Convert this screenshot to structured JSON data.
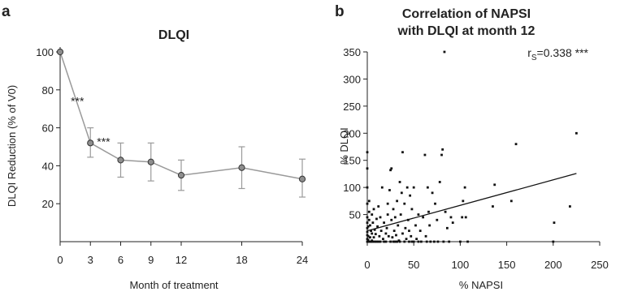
{
  "chart_data": [
    {
      "type": "line",
      "panel_label": "a",
      "title": "DLQI",
      "xlabel": "Month of treatment",
      "ylabel": "DLQI Reduction (% of V0)",
      "x_ticks": [
        "0",
        "3",
        "6",
        "9",
        "12",
        "18",
        "24"
      ],
      "y_ticks": [
        "20",
        "40",
        "60",
        "80",
        "100"
      ],
      "ylim": [
        0,
        100
      ],
      "grid": false,
      "series": [
        {
          "x": [
            "0",
            "3",
            "6",
            "9",
            "12",
            "18",
            "24"
          ],
          "values": [
            100,
            52,
            43,
            42,
            35,
            39,
            33
          ],
          "error_low": [
            100,
            44.5,
            34,
            32,
            27,
            28,
            23.5
          ],
          "error_high": [
            100,
            60,
            52,
            52,
            43,
            50,
            43.5
          ]
        }
      ],
      "annotations": [
        {
          "text": "***",
          "x": "3",
          "position": "left-above"
        },
        {
          "text": "***",
          "x": "3",
          "position": "right"
        }
      ],
      "colors": {
        "line": "#9a9a9a",
        "marker_fill": "#8e8e8e",
        "marker_edge": "#333333",
        "axes": "#222222"
      }
    },
    {
      "type": "scatter",
      "panel_label": "b",
      "title_lines": [
        "Correlation of NAPSI",
        "with DLQI at month 12"
      ],
      "xlabel": "% NAPSI",
      "ylabel": "% DLQI",
      "x_ticks": [
        "0",
        "50",
        "100",
        "150",
        "200",
        "250"
      ],
      "y_ticks": [
        "50",
        "100",
        "150",
        "200",
        "250",
        "300",
        "350"
      ],
      "xlim": [
        0,
        250
      ],
      "ylim": [
        0,
        350
      ],
      "grid": false,
      "stat_prefix": "r",
      "stat_subscript": "S",
      "stat_value": "=0.338 ***",
      "trendline": {
        "intercept": 20,
        "slope": 0.47
      },
      "points": [
        [
          0,
          0
        ],
        [
          0,
          5
        ],
        [
          0,
          12
        ],
        [
          0,
          18
        ],
        [
          0,
          25
        ],
        [
          0,
          35
        ],
        [
          0,
          45
        ],
        [
          0,
          70
        ],
        [
          0,
          100
        ],
        [
          0,
          135
        ],
        [
          0,
          165
        ],
        [
          1,
          3
        ],
        [
          1,
          10
        ],
        [
          1,
          28
        ],
        [
          2,
          0
        ],
        [
          2,
          40
        ],
        [
          2,
          55
        ],
        [
          2,
          75
        ],
        [
          3,
          8
        ],
        [
          3,
          30
        ],
        [
          4,
          0
        ],
        [
          4,
          20
        ],
        [
          5,
          2
        ],
        [
          5,
          15
        ],
        [
          5,
          50
        ],
        [
          6,
          0
        ],
        [
          6,
          35
        ],
        [
          7,
          8
        ],
        [
          7,
          60
        ],
        [
          8,
          0
        ],
        [
          8,
          22
        ],
        [
          9,
          14
        ],
        [
          10,
          0
        ],
        [
          10,
          42
        ],
        [
          11,
          28
        ],
        [
          12,
          0
        ],
        [
          12,
          65
        ],
        [
          13,
          10
        ],
        [
          14,
          0
        ],
        [
          14,
          45
        ],
        [
          15,
          20
        ],
        [
          16,
          100
        ],
        [
          17,
          5
        ],
        [
          18,
          0
        ],
        [
          18,
          35
        ],
        [
          20,
          0
        ],
        [
          20,
          15
        ],
        [
          21,
          25
        ],
        [
          22,
          50
        ],
        [
          22,
          70
        ],
        [
          23,
          10
        ],
        [
          24,
          95
        ],
        [
          25,
          0
        ],
        [
          25,
          132
        ],
        [
          26,
          40
        ],
        [
          26,
          135
        ],
        [
          27,
          8
        ],
        [
          28,
          0
        ],
        [
          28,
          60
        ],
        [
          29,
          20
        ],
        [
          30,
          0
        ],
        [
          30,
          45
        ],
        [
          31,
          12
        ],
        [
          32,
          0
        ],
        [
          32,
          75
        ],
        [
          33,
          30
        ],
        [
          34,
          2
        ],
        [
          35,
          0
        ],
        [
          35,
          110
        ],
        [
          36,
          50
        ],
        [
          37,
          90
        ],
        [
          38,
          15
        ],
        [
          38,
          165
        ],
        [
          40,
          0
        ],
        [
          40,
          70
        ],
        [
          41,
          25
        ],
        [
          42,
          5
        ],
        [
          43,
          100
        ],
        [
          44,
          40
        ],
        [
          45,
          0
        ],
        [
          45,
          20
        ],
        [
          46,
          85
        ],
        [
          47,
          10
        ],
        [
          48,
          0
        ],
        [
          48,
          60
        ],
        [
          50,
          0
        ],
        [
          50,
          100
        ],
        [
          52,
          30
        ],
        [
          53,
          5
        ],
        [
          55,
          0
        ],
        [
          55,
          50
        ],
        [
          57,
          20
        ],
        [
          58,
          0
        ],
        [
          60,
          45
        ],
        [
          62,
          160
        ],
        [
          63,
          10
        ],
        [
          64,
          0
        ],
        [
          65,
          100
        ],
        [
          66,
          55
        ],
        [
          67,
          30
        ],
        [
          68,
          0
        ],
        [
          70,
          90
        ],
        [
          72,
          0
        ],
        [
          73,
          70
        ],
        [
          75,
          40
        ],
        [
          76,
          0
        ],
        [
          78,
          110
        ],
        [
          80,
          160
        ],
        [
          81,
          170
        ],
        [
          82,
          0
        ],
        [
          83,
          350
        ],
        [
          84,
          55
        ],
        [
          86,
          25
        ],
        [
          88,
          0
        ],
        [
          90,
          45
        ],
        [
          92,
          35
        ],
        [
          100,
          0
        ],
        [
          102,
          45
        ],
        [
          103,
          75
        ],
        [
          105,
          100
        ],
        [
          106,
          45
        ],
        [
          108,
          0
        ],
        [
          135,
          65
        ],
        [
          137,
          105
        ],
        [
          155,
          75
        ],
        [
          160,
          180
        ],
        [
          200,
          0
        ],
        [
          201,
          35
        ],
        [
          218,
          65
        ],
        [
          225,
          200
        ]
      ],
      "colors": {
        "point": "#111111",
        "trendline": "#111111",
        "axes": "#222222"
      }
    }
  ]
}
